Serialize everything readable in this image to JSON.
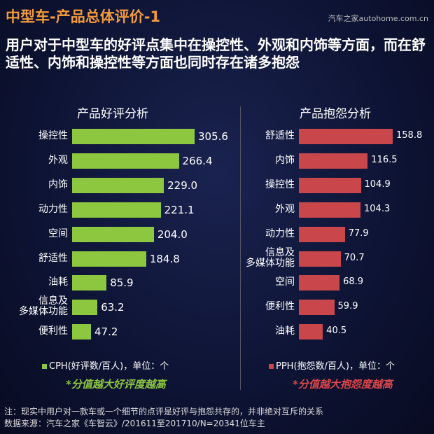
{
  "header": {
    "title": "中型车-产品总体评价-1",
    "watermark": "汽车之家autohome.com.cn",
    "subtitle": "用户对于中型车的好评点集中在操控性、外观和内饰等方面，而在舒适性、内饰和操控性等方面也同时存在诸多抱怨"
  },
  "chart_data": [
    {
      "type": "bar",
      "orientation": "horizontal",
      "title": "产品好评分析",
      "color": "#8dc63f",
      "categories": [
        "操控性",
        "外观",
        "内饰",
        "动力性",
        "空间",
        "舒适性",
        "油耗",
        "信息及\n多媒体功能",
        "便利性"
      ],
      "values": [
        305.6,
        266.4,
        229.0,
        221.1,
        204.0,
        184.8,
        85.9,
        63.2,
        47.2
      ],
      "labels": [
        "305.6",
        "266.4",
        "229.0",
        "221.1",
        "204.0",
        "184.8",
        "85.9",
        "63.2",
        "47.2"
      ],
      "legend": "CPH(好评数/百人)，单位：个",
      "note": "*分值越大好评度越高"
    },
    {
      "type": "bar",
      "orientation": "horizontal",
      "title": "产品抱怨分析",
      "color": "#c9474b",
      "categories": [
        "舒适性",
        "内饰",
        "操控性",
        "外观",
        "动力性",
        "信息及\n多媒体功能",
        "空间",
        "便利性",
        "油耗"
      ],
      "values": [
        158.8,
        116.5,
        104.9,
        104.3,
        77.9,
        70.7,
        68.9,
        59.9,
        40.5
      ],
      "labels": [
        "158.8",
        "116.5",
        "104.9",
        "104.3",
        "77.9",
        "70.7",
        "68.9",
        "59.9",
        "40.5"
      ],
      "legend": "PPH(抱怨数/百人)，单位：个",
      "note": "*分值越大抱怨度越高"
    }
  ],
  "footer": {
    "note": "注：现实中用户对一款车或一个细节的点评是好评与抱怨共存的，并非绝对互斥的关系",
    "source": "数据来源：汽车之家《车智云》/201611至201710/N=20341位车主"
  }
}
